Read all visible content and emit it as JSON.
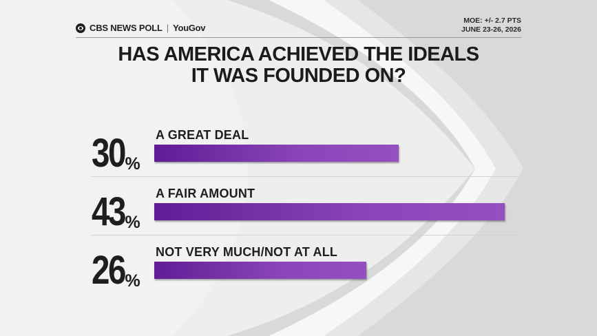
{
  "header": {
    "brand_main": "CBS NEWS POLL",
    "brand_separator": "|",
    "brand_partner": "YouGov",
    "moe": "MOE: +/- 2.7 PTS",
    "dates": "JUNE 23-26, 2026"
  },
  "chart_data": {
    "type": "bar",
    "orientation": "horizontal",
    "title": "HAS AMERICA ACHIEVED THE IDEALS IT WAS FOUNDED ON?",
    "title_lines": [
      "HAS AMERICA ACHIEVED THE IDEALS",
      "IT WAS FOUNDED ON?"
    ],
    "categories": [
      "A GREAT DEAL",
      "A FAIR AMOUNT",
      "NOT VERY MUCH/NOT AT ALL"
    ],
    "values": [
      30,
      43,
      26
    ],
    "value_suffix": "%",
    "xlim": [
      0,
      43
    ],
    "grid": false,
    "legend": "none",
    "bar_color": "#8a45b9"
  },
  "colors": {
    "bar_dark": "#5f1c95",
    "bar_light": "#9450c0",
    "text": "#1e1e1e"
  }
}
